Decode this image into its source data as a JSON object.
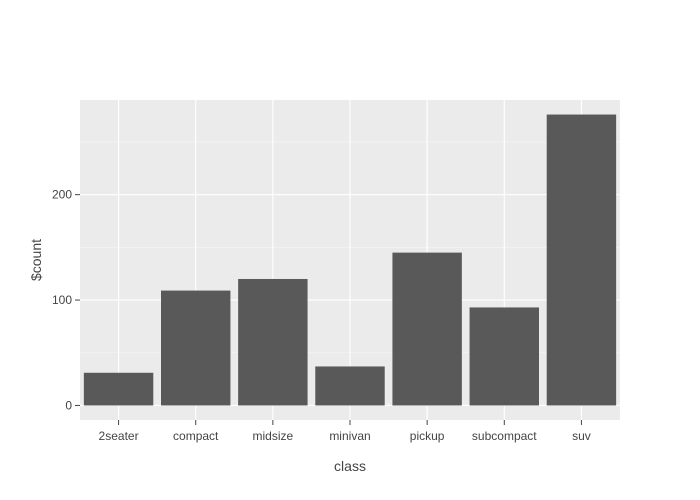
{
  "chart_data": {
    "type": "bar",
    "title": "",
    "xlabel": "class",
    "ylabel": "$count",
    "categories": [
      "2seater",
      "compact",
      "midsize",
      "minivan",
      "pickup",
      "subcompact",
      "suv"
    ],
    "values": [
      31,
      109,
      120,
      37,
      145,
      93,
      276
    ],
    "ylim": [
      -13.8,
      289.8
    ],
    "yticks": [
      0,
      100,
      200
    ],
    "ytick_labels": [
      "0",
      "100",
      "200"
    ],
    "grid": true,
    "legend": "none",
    "colors": {
      "bar": "#595959",
      "panel": "#ebebeb",
      "grid": "#ffffff",
      "text": "#444444",
      "tick": "#444444"
    }
  }
}
